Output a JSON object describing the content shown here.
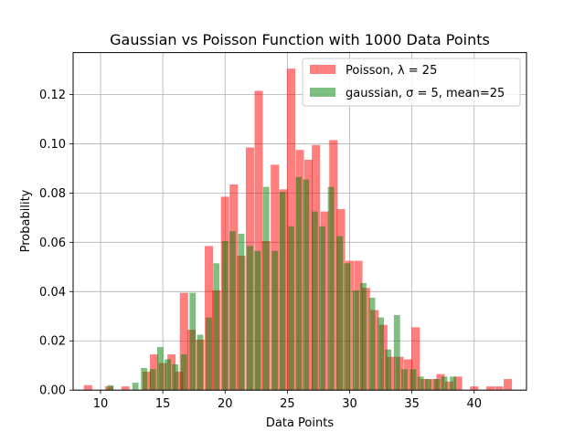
{
  "chart_data": {
    "type": "bar",
    "title": "Gaussian vs Poisson Function with 1000 Data Points",
    "xlabel": "Data Points",
    "ylabel": "Probability",
    "xlim": [
      7.8,
      44.2
    ],
    "ylim": [
      0,
      0.137
    ],
    "xticks": [
      10,
      15,
      20,
      25,
      30,
      35,
      40
    ],
    "yticks": [
      0.0,
      0.02,
      0.04,
      0.06,
      0.08,
      0.1,
      0.12
    ],
    "ytick_labels": [
      "0.00",
      "0.02",
      "0.04",
      "0.06",
      "0.08",
      "0.10",
      "0.12"
    ],
    "grid": true,
    "legend_position": "top-right",
    "series": [
      {
        "name": "Poisson, λ = 25",
        "color": "#ff0000",
        "alpha": 0.5,
        "bin_width": 0.667,
        "bins": [
          [
            9.0,
            0.002
          ],
          [
            10.3,
            0.0
          ],
          [
            10.7,
            0.0015
          ],
          [
            12.0,
            0.0015
          ],
          [
            13.7,
            0.0075
          ],
          [
            14.3,
            0.0145
          ],
          [
            15.0,
            0.011
          ],
          [
            15.7,
            0.0145
          ],
          [
            16.3,
            0.0075
          ],
          [
            16.7,
            0.0395
          ],
          [
            17.3,
            0.0245
          ],
          [
            18.0,
            0.0205
          ],
          [
            18.7,
            0.0585
          ],
          [
            19.3,
            0.0405
          ],
          [
            20.0,
            0.0785
          ],
          [
            20.7,
            0.0835
          ],
          [
            21.3,
            0.0545
          ],
          [
            22.0,
            0.0985
          ],
          [
            22.7,
            0.1215
          ],
          [
            23.3,
            0.0605
          ],
          [
            24.0,
            0.0915
          ],
          [
            24.7,
            0.0815
          ],
          [
            25.3,
            0.1305
          ],
          [
            26.0,
            0.0975
          ],
          [
            26.7,
            0.0935
          ],
          [
            27.3,
            0.0995
          ],
          [
            28.0,
            0.0725
          ],
          [
            28.7,
            0.1015
          ],
          [
            29.3,
            0.0735
          ],
          [
            30.0,
            0.0525
          ],
          [
            30.7,
            0.0525
          ],
          [
            31.3,
            0.0415
          ],
          [
            32.0,
            0.0325
          ],
          [
            32.7,
            0.0265
          ],
          [
            33.3,
            0.0135
          ],
          [
            34.0,
            0.0135
          ],
          [
            34.7,
            0.0125
          ],
          [
            35.3,
            0.0255
          ],
          [
            36.0,
            0.0045
          ],
          [
            36.7,
            0.0045
          ],
          [
            37.3,
            0.0065
          ],
          [
            38.0,
            0.0035
          ],
          [
            38.7,
            0.0055
          ],
          [
            40.0,
            0.0015
          ],
          [
            41.3,
            0.0015
          ],
          [
            42.0,
            0.0015
          ],
          [
            42.7,
            0.0045
          ]
        ]
      },
      {
        "name": "gaussian, σ = 5, mean=25",
        "color": "#008000",
        "alpha": 0.5,
        "bin_width": 0.5,
        "bins": [
          [
            10.8,
            0.002
          ],
          [
            12.8,
            0.003
          ],
          [
            13.5,
            0.009
          ],
          [
            14.2,
            0.0085
          ],
          [
            14.8,
            0.0175
          ],
          [
            15.4,
            0.0125
          ],
          [
            16.0,
            0.0105
          ],
          [
            16.7,
            0.0145
          ],
          [
            17.4,
            0.0395
          ],
          [
            18.0,
            0.0225
          ],
          [
            18.7,
            0.0295
          ],
          [
            19.3,
            0.0515
          ],
          [
            20.0,
            0.0605
          ],
          [
            20.6,
            0.0645
          ],
          [
            21.3,
            0.0635
          ],
          [
            22.0,
            0.0585
          ],
          [
            22.6,
            0.0565
          ],
          [
            23.3,
            0.0825
          ],
          [
            24.0,
            0.0565
          ],
          [
            24.6,
            0.0805
          ],
          [
            25.3,
            0.0665
          ],
          [
            25.9,
            0.0865
          ],
          [
            26.5,
            0.0855
          ],
          [
            27.2,
            0.0725
          ],
          [
            27.8,
            0.0665
          ],
          [
            28.5,
            0.0825
          ],
          [
            29.2,
            0.0625
          ],
          [
            29.8,
            0.0515
          ],
          [
            30.5,
            0.0405
          ],
          [
            31.1,
            0.0435
          ],
          [
            31.8,
            0.0375
          ],
          [
            32.5,
            0.0295
          ],
          [
            33.1,
            0.0165
          ],
          [
            33.8,
            0.0305
          ],
          [
            34.4,
            0.0085
          ],
          [
            35.1,
            0.0085
          ],
          [
            35.7,
            0.0055
          ],
          [
            36.3,
            0.0045
          ],
          [
            37.0,
            0.0045
          ],
          [
            37.6,
            0.0055
          ],
          [
            38.3,
            0.0055
          ]
        ]
      }
    ]
  }
}
